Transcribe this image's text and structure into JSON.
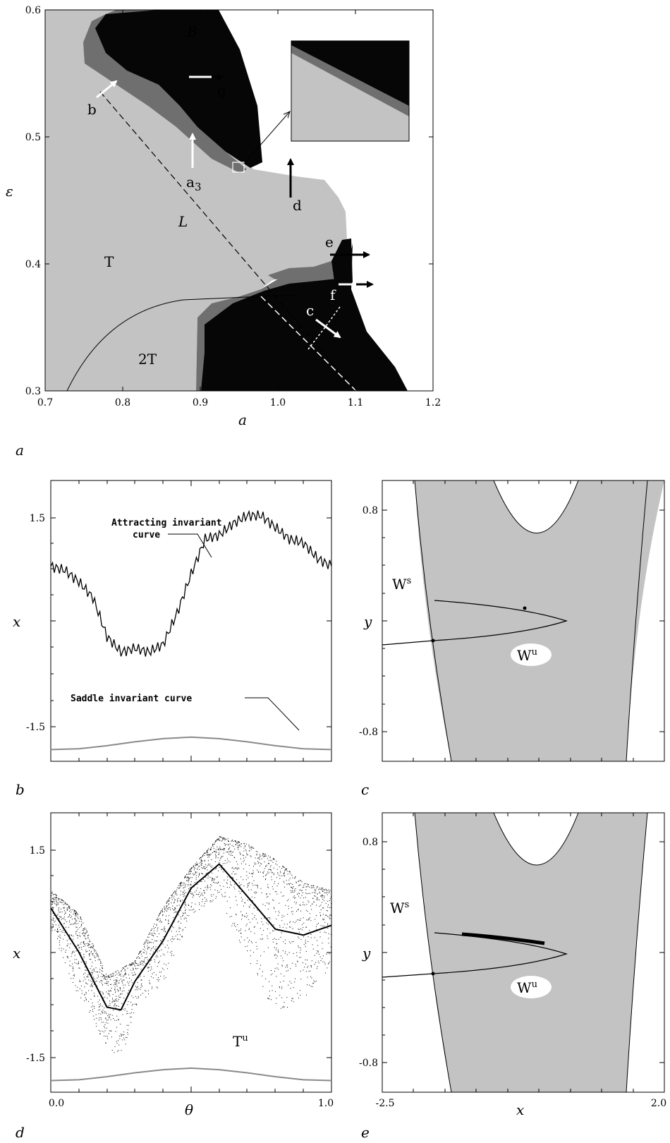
{
  "colors": {
    "light": "#c3c3c3",
    "mid": "#6f6f6f",
    "dark": "#060606",
    "saddle": "#8a8a8a"
  },
  "panel_a": {
    "letter": "a",
    "xlabel": "a",
    "ylabel": "ε",
    "xticks": [
      "0.7",
      "0.8",
      "0.9",
      "1.0",
      "1.1",
      "1.2"
    ],
    "yticks": [
      "0.3",
      "0.4",
      "0.5",
      "0.6"
    ],
    "region_labels": {
      "B": "B",
      "T": "T",
      "T2": "2T",
      "L": "L"
    },
    "arrow_labels": {
      "a3": "a",
      "a3_sub": "3",
      "b": "b",
      "c": "c",
      "d": "d",
      "e": "e",
      "f": "f",
      "g": "g"
    }
  },
  "panel_b": {
    "letter": "b",
    "ylabel": "x",
    "yticks": [
      "1.5",
      "-1.5"
    ],
    "annotation_attracting_line1": "Attracting invariant",
    "annotation_attracting_line2": "curve",
    "annotation_saddle": "Saddle invariant curve"
  },
  "panel_c": {
    "letter": "c",
    "ylabel": "y",
    "yticks": [
      "0.8",
      "-0.8"
    ],
    "ws": "W",
    "ws_sup": "s",
    "wu": "W",
    "wu_sup": "u"
  },
  "panel_d": {
    "letter": "d",
    "ylabel": "x",
    "xlabel": "θ",
    "yticks": [
      "1.5",
      "-1.5"
    ],
    "xticks": [
      "0.0",
      "1.0"
    ],
    "tu": "T",
    "tu_sup": "u"
  },
  "panel_e": {
    "letter": "e",
    "ylabel": "y",
    "xlabel": "x",
    "yticks": [
      "0.8",
      "-0.8"
    ],
    "xticks": [
      "-2.5",
      "2.0"
    ],
    "ws": "W",
    "ws_sup": "s",
    "wu": "W",
    "wu_sup": "u"
  },
  "chart_data": [
    {
      "type": "heatmap",
      "panel": "a",
      "xlabel": "a",
      "ylabel": "ε",
      "xlim": [
        0.7,
        1.2
      ],
      "ylim": [
        0.3,
        0.6
      ],
      "regions": [
        "B",
        "T",
        "2T"
      ],
      "curve_L": [
        [
          0.78,
          0.54
        ],
        [
          1.1,
          0.3
        ]
      ]
    },
    {
      "type": "line",
      "panel": "b",
      "ylabel": "x",
      "xlim": [
        0.0,
        1.0
      ],
      "ylim": [
        -1.8,
        1.8
      ],
      "series": [
        {
          "name": "Attracting invariant curve",
          "x": [
            0.0,
            0.05,
            0.1,
            0.15,
            0.2,
            0.25,
            0.3,
            0.35,
            0.4,
            0.45,
            0.5,
            0.55,
            0.6,
            0.65,
            0.7,
            0.75,
            0.8,
            0.85,
            0.9,
            0.95,
            1.0
          ],
          "y": [
            0.7,
            0.65,
            0.5,
            0.3,
            -0.2,
            -0.4,
            -0.35,
            -0.4,
            -0.3,
            0.1,
            0.6,
            1.05,
            1.1,
            1.25,
            1.35,
            1.35,
            1.2,
            1.05,
            1.0,
            0.8,
            0.7
          ]
        },
        {
          "name": "Saddle invariant curve",
          "x": [
            0.0,
            0.1,
            0.2,
            0.3,
            0.4,
            0.5,
            0.6,
            0.7,
            0.8,
            0.9,
            1.0
          ],
          "y": [
            -1.65,
            -1.64,
            -1.6,
            -1.55,
            -1.51,
            -1.49,
            -1.51,
            -1.55,
            -1.6,
            -1.64,
            -1.65
          ]
        }
      ]
    },
    {
      "type": "line",
      "panel": "c",
      "ylabel": "y",
      "xlim": [
        -2.5,
        2.0
      ],
      "ylim": [
        -0.9,
        0.9
      ]
    },
    {
      "type": "scatter",
      "panel": "d",
      "xlabel": "θ",
      "ylabel": "x",
      "xlim": [
        0.0,
        1.0
      ],
      "ylim": [
        -1.8,
        1.8
      ],
      "series": [
        {
          "name": "T",
          "x": [
            0.0,
            0.1,
            0.2,
            0.3,
            0.4,
            0.5,
            0.6,
            0.7,
            0.8,
            0.9,
            1.0
          ],
          "y": [
            -1.65,
            -1.64,
            -1.6,
            -1.55,
            -1.51,
            -1.49,
            -1.51,
            -1.55,
            -1.6,
            -1.64,
            -1.65
          ]
        }
      ]
    },
    {
      "type": "line",
      "panel": "e",
      "xlabel": "x",
      "ylabel": "y",
      "xlim": [
        -2.5,
        2.0
      ],
      "ylim": [
        -0.9,
        0.9
      ]
    }
  ]
}
